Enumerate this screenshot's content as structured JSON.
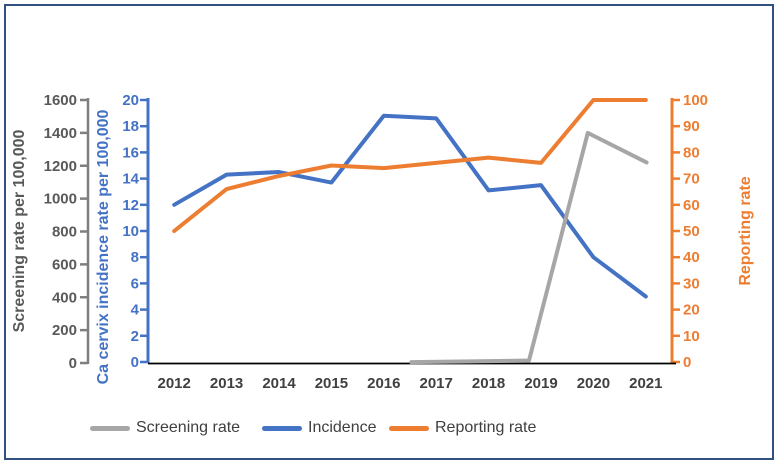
{
  "chart_data": {
    "type": "line",
    "title": "",
    "categories": [
      "2012",
      "2013",
      "2014",
      "2015",
      "2016",
      "2017",
      "2018",
      "2019",
      "2020",
      "2021"
    ],
    "series": [
      {
        "name": "Screening rate",
        "axis": "screening",
        "color": "#A6A6A6",
        "z": 1,
        "values": [
          null,
          null,
          null,
          null,
          null,
          5,
          10,
          15,
          1400,
          1220
        ]
      },
      {
        "name": "Incidence",
        "axis": "incidence",
        "color": "#4472C4",
        "z": 0,
        "values": [
          12,
          14.3,
          14.5,
          13.7,
          18.8,
          18.6,
          13.1,
          13.5,
          8,
          5
        ]
      },
      {
        "name": "Reporting rate",
        "axis": "reporting",
        "color": "#ED7D31",
        "z": 0,
        "values": [
          50,
          66,
          71,
          75,
          74,
          76,
          78,
          76,
          100,
          100
        ]
      }
    ],
    "axes": {
      "screening": {
        "label": "Screening rate per 100,000",
        "min": 0,
        "max": 1600,
        "step": 200,
        "side": "far-left",
        "color": "#595959"
      },
      "incidence": {
        "label": "Ca cervix incidence rate per 100,000",
        "min": 0,
        "max": 20,
        "step": 2,
        "side": "left",
        "color": "#4472C4"
      },
      "reporting": {
        "label": "Reporting rate",
        "min": 0,
        "max": 100,
        "step": 10,
        "side": "right",
        "color": "#ED7D31"
      }
    },
    "xlabel": "",
    "legend_position": "bottom",
    "grid": false,
    "colors": {
      "frame_border": "#31517e",
      "x_axis_line": "#000000",
      "tick_text_dark": "#404040"
    }
  }
}
